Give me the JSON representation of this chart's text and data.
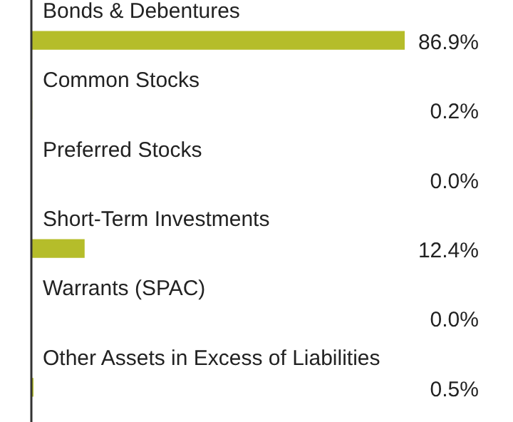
{
  "chart_data": {
    "type": "bar",
    "orientation": "horizontal",
    "categories": [
      "Bonds & Debentures",
      "Common Stocks",
      "Preferred Stocks",
      "Short-Term Investments",
      "Warrants (SPAC)",
      "Other Assets in Excess of Liabilities"
    ],
    "values": [
      86.9,
      0.2,
      0.0,
      12.4,
      0.0,
      0.5
    ],
    "value_labels": [
      "86.9%",
      "0.2%",
      "0.0%",
      "12.4%",
      "0.0%",
      "0.5%"
    ],
    "color": "#b5bd2a"
  }
}
